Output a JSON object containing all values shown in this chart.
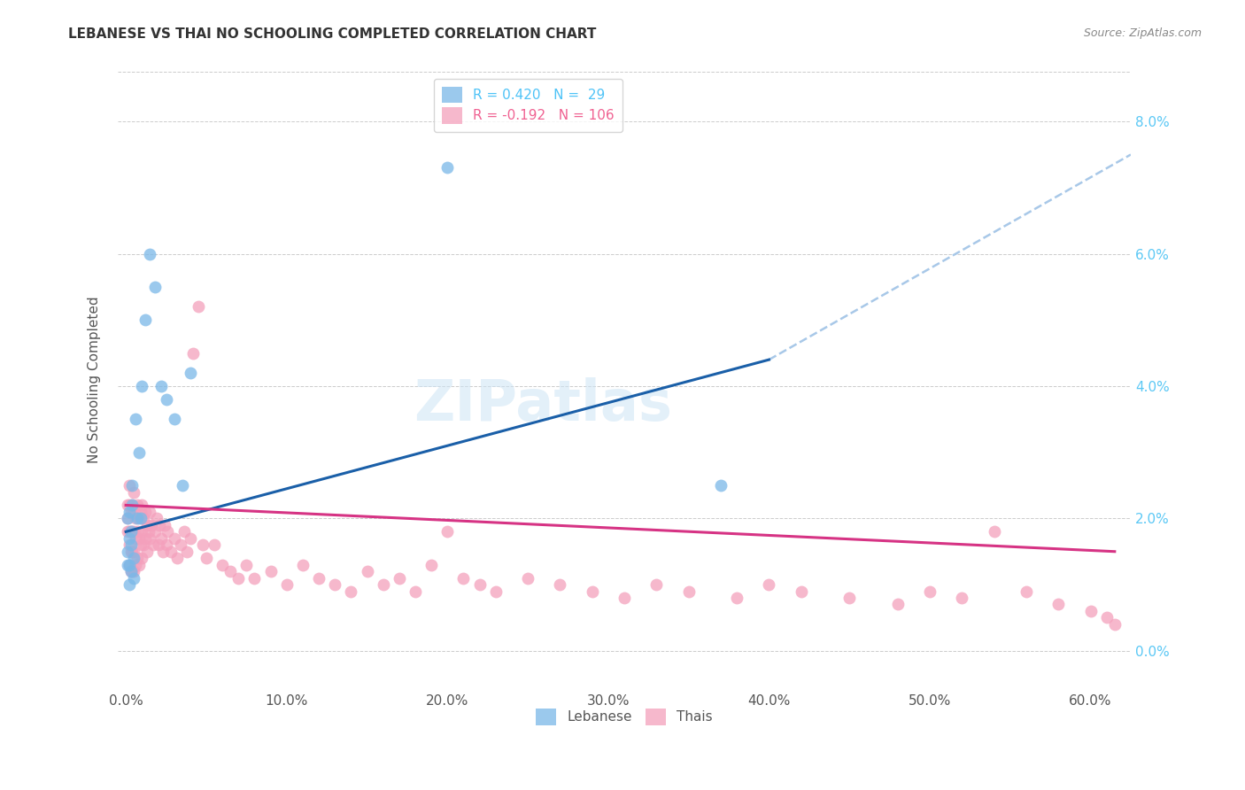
{
  "title": "LEBANESE VS THAI NO SCHOOLING COMPLETED CORRELATION CHART",
  "source": "Source: ZipAtlas.com",
  "ylabel": "No Schooling Completed",
  "xlabel_ticks": [
    "0.0%",
    "10.0%",
    "20.0%",
    "30.0%",
    "40.0%",
    "50.0%",
    "60.0%"
  ],
  "ylabel_ticks": [
    "0.0%",
    "2.0%",
    "4.0%",
    "6.0%",
    "8.0%"
  ],
  "xlim_min": -0.005,
  "xlim_max": 0.625,
  "ylim_min": -0.006,
  "ylim_max": 0.088,
  "lebanese_color": "#7ab8e8",
  "thai_color": "#f4a0bc",
  "lebanese_line_color": "#1a5fa8",
  "thai_line_color": "#d63384",
  "dashed_line_color": "#a8c8e8",
  "watermark_text": "ZIPatlas",
  "watermark_color": "#d0e8f5",
  "title_fontsize": 11,
  "source_fontsize": 9,
  "tick_fontsize": 11,
  "legend_fontsize": 11,
  "legend1_line1": "R = 0.420   N =  29",
  "legend1_line2": "R = -0.192   N = 106",
  "legend1_color1": "#4fc3f7",
  "legend1_color2": "#f06292",
  "legend2_label1": "Lebanese",
  "legend2_label2": "Thais",
  "lebanese_x": [
    0.001,
    0.001,
    0.001,
    0.002,
    0.002,
    0.002,
    0.002,
    0.003,
    0.003,
    0.003,
    0.004,
    0.004,
    0.005,
    0.005,
    0.006,
    0.007,
    0.008,
    0.009,
    0.01,
    0.012,
    0.015,
    0.018,
    0.022,
    0.025,
    0.03,
    0.035,
    0.04,
    0.2,
    0.37
  ],
  "lebanese_y": [
    0.02,
    0.015,
    0.013,
    0.021,
    0.017,
    0.013,
    0.01,
    0.018,
    0.016,
    0.012,
    0.022,
    0.025,
    0.014,
    0.011,
    0.035,
    0.02,
    0.03,
    0.02,
    0.04,
    0.05,
    0.06,
    0.055,
    0.04,
    0.038,
    0.035,
    0.025,
    0.042,
    0.073,
    0.025
  ],
  "thai_x": [
    0.001,
    0.001,
    0.001,
    0.002,
    0.002,
    0.002,
    0.002,
    0.002,
    0.003,
    0.003,
    0.003,
    0.003,
    0.004,
    0.004,
    0.004,
    0.004,
    0.005,
    0.005,
    0.005,
    0.005,
    0.005,
    0.006,
    0.006,
    0.006,
    0.007,
    0.007,
    0.007,
    0.008,
    0.008,
    0.008,
    0.009,
    0.009,
    0.01,
    0.01,
    0.01,
    0.011,
    0.011,
    0.012,
    0.012,
    0.013,
    0.013,
    0.014,
    0.015,
    0.015,
    0.016,
    0.017,
    0.018,
    0.019,
    0.02,
    0.021,
    0.022,
    0.023,
    0.024,
    0.025,
    0.026,
    0.028,
    0.03,
    0.032,
    0.034,
    0.036,
    0.038,
    0.04,
    0.042,
    0.045,
    0.048,
    0.05,
    0.055,
    0.06,
    0.065,
    0.07,
    0.075,
    0.08,
    0.09,
    0.1,
    0.11,
    0.12,
    0.13,
    0.14,
    0.15,
    0.16,
    0.17,
    0.18,
    0.19,
    0.2,
    0.21,
    0.22,
    0.23,
    0.25,
    0.27,
    0.29,
    0.31,
    0.33,
    0.35,
    0.38,
    0.4,
    0.42,
    0.45,
    0.48,
    0.5,
    0.52,
    0.54,
    0.56,
    0.58,
    0.6,
    0.61,
    0.615
  ],
  "thai_y": [
    0.022,
    0.02,
    0.018,
    0.025,
    0.022,
    0.018,
    0.016,
    0.013,
    0.021,
    0.018,
    0.015,
    0.012,
    0.022,
    0.018,
    0.015,
    0.012,
    0.024,
    0.021,
    0.018,
    0.015,
    0.012,
    0.02,
    0.017,
    0.013,
    0.022,
    0.018,
    0.014,
    0.02,
    0.017,
    0.013,
    0.021,
    0.016,
    0.022,
    0.018,
    0.014,
    0.02,
    0.016,
    0.021,
    0.017,
    0.019,
    0.015,
    0.018,
    0.021,
    0.017,
    0.019,
    0.016,
    0.018,
    0.02,
    0.016,
    0.019,
    0.017,
    0.015,
    0.019,
    0.016,
    0.018,
    0.015,
    0.017,
    0.014,
    0.016,
    0.018,
    0.015,
    0.017,
    0.045,
    0.052,
    0.016,
    0.014,
    0.016,
    0.013,
    0.012,
    0.011,
    0.013,
    0.011,
    0.012,
    0.01,
    0.013,
    0.011,
    0.01,
    0.009,
    0.012,
    0.01,
    0.011,
    0.009,
    0.013,
    0.018,
    0.011,
    0.01,
    0.009,
    0.011,
    0.01,
    0.009,
    0.008,
    0.01,
    0.009,
    0.008,
    0.01,
    0.009,
    0.008,
    0.007,
    0.009,
    0.008,
    0.018,
    0.009,
    0.007,
    0.006,
    0.005,
    0.004
  ],
  "leb_line_x0": 0.0,
  "leb_line_x_solid_end": 0.4,
  "leb_line_x_dash_end": 0.625,
  "leb_line_y0": 0.018,
  "leb_line_y_solid_end": 0.044,
  "leb_line_y_dash_end": 0.075,
  "thai_line_x0": 0.0,
  "thai_line_x1": 0.615,
  "thai_line_y0": 0.022,
  "thai_line_y1": 0.015
}
